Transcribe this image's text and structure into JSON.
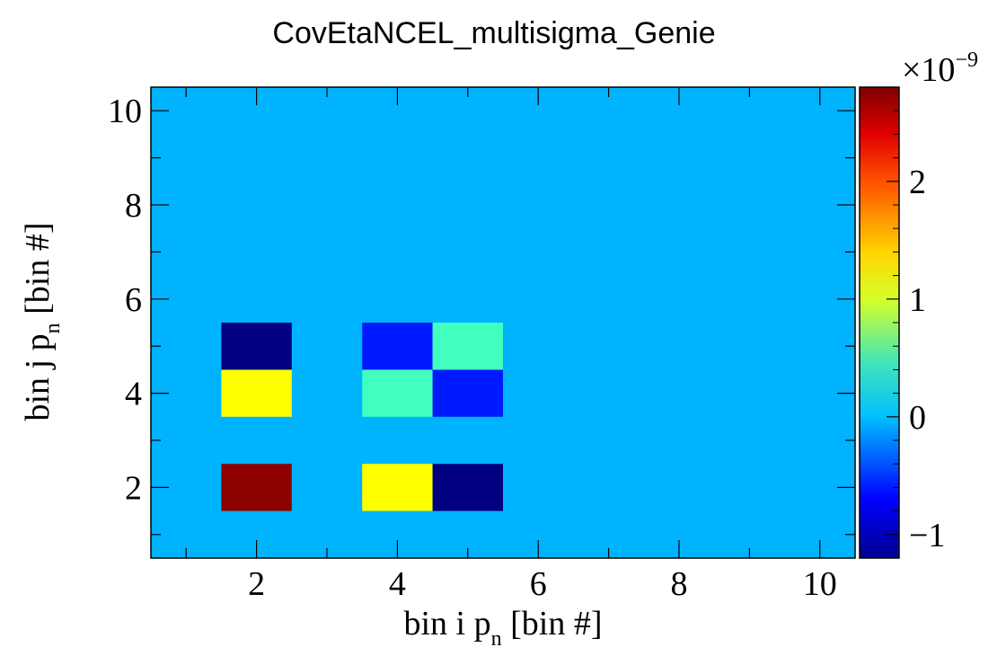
{
  "chart_data": {
    "type": "heatmap",
    "title": "CovEtaNCEL_multisigma_Genie",
    "xlabel": "bin i p",
    "xlabel_sub": "n",
    "xlabel_suffix": " [bin #]",
    "ylabel": "bin j p",
    "ylabel_sub": "n",
    "ylabel_suffix": " [bin #]",
    "x_range": [
      0.5,
      10.5
    ],
    "y_range": [
      0.5,
      10.5
    ],
    "x_ticks": [
      2,
      4,
      6,
      8,
      10
    ],
    "y_ticks": [
      2,
      4,
      6,
      8,
      10
    ],
    "x_tick_labels": [
      "2",
      "4",
      "6",
      "8",
      "10"
    ],
    "y_tick_labels": [
      "2",
      "4",
      "6",
      "8",
      "10"
    ],
    "background_value": 0,
    "colorbar": {
      "range": [
        -1.2,
        2.8
      ],
      "ticks": [
        -1,
        0,
        1,
        2
      ],
      "tick_labels": [
        "−1",
        "0",
        "1",
        "2"
      ],
      "exponent_label": "×10",
      "exponent_power": "−9",
      "scale": 1e-09,
      "colormap": "jet"
    },
    "cells": [
      {
        "x": 2,
        "y": 2,
        "value": 2.75
      },
      {
        "x": 2,
        "y": 4,
        "value": 1.3
      },
      {
        "x": 2,
        "y": 5,
        "value": -1.2
      },
      {
        "x": 4,
        "y": 2,
        "value": 1.3
      },
      {
        "x": 4,
        "y": 4,
        "value": 0.55
      },
      {
        "x": 4,
        "y": 5,
        "value": -0.6
      },
      {
        "x": 5,
        "y": 2,
        "value": -1.2
      },
      {
        "x": 5,
        "y": 4,
        "value": -0.6
      },
      {
        "x": 5,
        "y": 5,
        "value": 0.55
      }
    ]
  }
}
